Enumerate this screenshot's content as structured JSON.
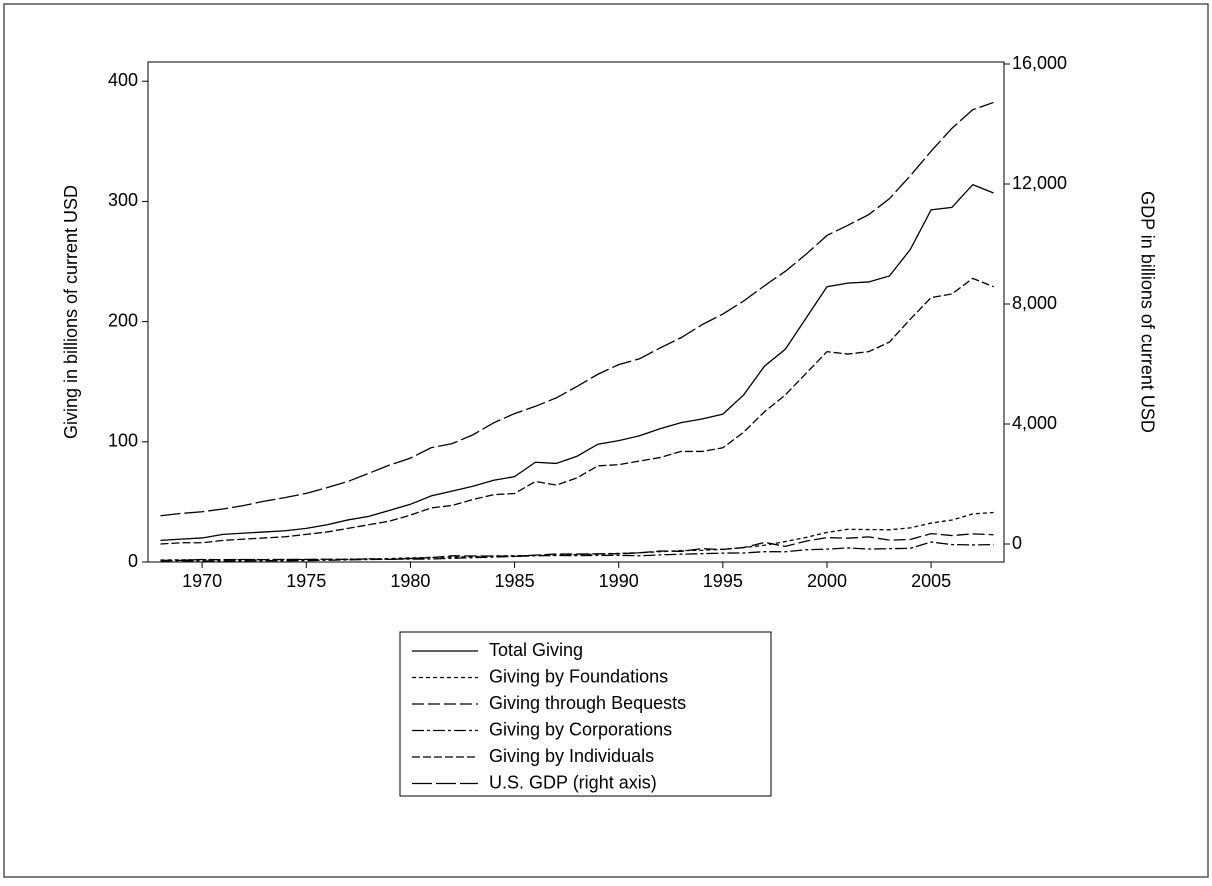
{
  "chart_data": {
    "type": "line",
    "y_label": "Giving in billions of current USD",
    "y2_label": "GDP in billions of current USD",
    "x": [
      1968,
      1969,
      1970,
      1971,
      1972,
      1973,
      1974,
      1975,
      1976,
      1977,
      1978,
      1979,
      1980,
      1981,
      1982,
      1983,
      1984,
      1985,
      1986,
      1987,
      1988,
      1989,
      1990,
      1991,
      1992,
      1993,
      1994,
      1995,
      1996,
      1997,
      1998,
      1999,
      2000,
      2001,
      2002,
      2003,
      2004,
      2005,
      2006,
      2007,
      2008
    ],
    "xlim": [
      1967.4,
      2008.5
    ],
    "xticks": [
      1970,
      1975,
      1980,
      1985,
      1990,
      1995,
      2000,
      2005
    ],
    "ylim": [
      0,
      416
    ],
    "yticks": [
      0,
      100,
      200,
      300,
      400
    ],
    "y2lim": [
      -600,
      16067
    ],
    "y2ticks": [
      0,
      {
        "value": 4000,
        "label": "4,000"
      },
      {
        "value": 8000,
        "label": "8,000"
      },
      {
        "value": 12000,
        "label": "12,000"
      },
      {
        "value": 16000,
        "label": "16,000"
      }
    ],
    "series": [
      {
        "name": "Total Giving",
        "color": "#000000",
        "dash": "none",
        "values": [
          18,
          19,
          20,
          23,
          24,
          25,
          26,
          28,
          31,
          35,
          38,
          43,
          48,
          55,
          59,
          63,
          68,
          71,
          83,
          82,
          88,
          98,
          101,
          105,
          111,
          116,
          119,
          123,
          139,
          163,
          177,
          203,
          229,
          232,
          233,
          238,
          260,
          293,
          295,
          314,
          307
        ]
      },
      {
        "name": "Giving by Foundations",
        "color": "#000000",
        "dash": "4 3",
        "values": [
          1.6,
          1.8,
          1.9,
          2.0,
          2.0,
          2.0,
          2.1,
          1.9,
          2.2,
          2.4,
          2.6,
          2.8,
          3.4,
          3.8,
          4.1,
          4.5,
          5.0,
          5.2,
          5.4,
          5.9,
          6.2,
          6.6,
          7.2,
          7.7,
          8.6,
          9.5,
          9.7,
          10.6,
          12.0,
          13.9,
          17.0,
          20.5,
          24.6,
          27.2,
          27.0,
          26.8,
          28.4,
          32.4,
          34.9,
          40.0,
          41.2
        ]
      },
      {
        "name": "Giving through Bequests",
        "color": "#000000",
        "dash": "12 4",
        "values": [
          1.3,
          1.4,
          2.1,
          1.9,
          2.1,
          2.0,
          2.1,
          2.2,
          2.3,
          2.1,
          2.6,
          2.2,
          2.9,
          3.6,
          5.2,
          5.0,
          5.0,
          4.8,
          5.7,
          6.6,
          6.6,
          6.8,
          6.8,
          7.7,
          9.1,
          8.9,
          11.1,
          10.4,
          12.0,
          16.3,
          13.0,
          17.4,
          20.3,
          19.8,
          20.9,
          18.2,
          18.7,
          23.6,
          22.0,
          23.4,
          22.7
        ]
      },
      {
        "name": "Giving by Corporations",
        "color": "#000000",
        "dash": "12 3 3 3",
        "values": [
          1.0,
          1.1,
          0.8,
          0.9,
          1.0,
          1.1,
          1.1,
          1.2,
          1.5,
          1.8,
          2.1,
          2.3,
          2.4,
          2.5,
          3.1,
          3.6,
          4.1,
          4.6,
          5.2,
          5.4,
          5.3,
          5.5,
          5.5,
          5.2,
          5.9,
          6.5,
          6.9,
          7.4,
          7.5,
          8.6,
          8.5,
          10.2,
          10.7,
          11.7,
          10.8,
          11.1,
          11.4,
          16.6,
          14.5,
          14.2,
          14.5
        ]
      },
      {
        "name": "Giving by Individuals",
        "color": "#000000",
        "dash": "8 3",
        "values": [
          15,
          16,
          16,
          18,
          19,
          20,
          21,
          23,
          25,
          28,
          31,
          34,
          39,
          45,
          47,
          52,
          56,
          57,
          67,
          64,
          70,
          80,
          81,
          84,
          87,
          92,
          92,
          95,
          108,
          125,
          139,
          157,
          175,
          173,
          175,
          183,
          202,
          220,
          223,
          236,
          229
        ]
      },
      {
        "name": "U.S. GDP (right axis)",
        "color": "#000000",
        "dash": "20 4",
        "axis": "y2",
        "values": [
          942,
          1019,
          1075,
          1168,
          1282,
          1429,
          1549,
          1689,
          1878,
          2086,
          2357,
          2632,
          2862,
          3211,
          3345,
          3638,
          4041,
          4347,
          4590,
          4870,
          5253,
          5658,
          5980,
          6174,
          6539,
          6879,
          7309,
          7664,
          8100,
          8609,
          9089,
          9661,
          10285,
          10622,
          10978,
          11511,
          12275,
          13094,
          13856,
          14478,
          14719
        ]
      }
    ]
  }
}
